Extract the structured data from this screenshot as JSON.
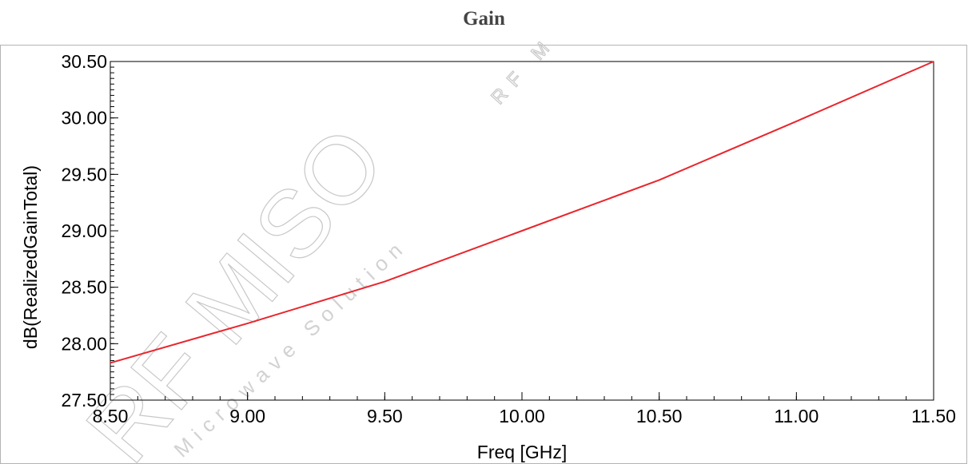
{
  "title": "Gain",
  "watermark": {
    "brand": "RF MISO",
    "tagline": "Microwave Solution",
    "short": "RF Micro"
  },
  "chart_data": {
    "type": "line",
    "title": "Gain",
    "xlabel": "Freq [GHz]",
    "ylabel": "dB(RealizedGainTotal)",
    "xlim": [
      8.5,
      11.5
    ],
    "ylim": [
      27.5,
      30.5
    ],
    "x_ticks": [
      "8.50",
      "9.00",
      "9.50",
      "10.00",
      "10.50",
      "11.00",
      "11.50"
    ],
    "y_ticks": [
      "27.50",
      "28.00",
      "28.50",
      "29.00",
      "29.50",
      "30.00",
      "30.50"
    ],
    "grid": false,
    "series": [
      {
        "color": "#e8262d",
        "x": [
          8.5,
          9.0,
          9.5,
          10.0,
          10.5,
          11.0,
          11.5
        ],
        "y": [
          27.83,
          28.18,
          28.55,
          29.0,
          29.45,
          29.97,
          30.5
        ]
      }
    ]
  }
}
